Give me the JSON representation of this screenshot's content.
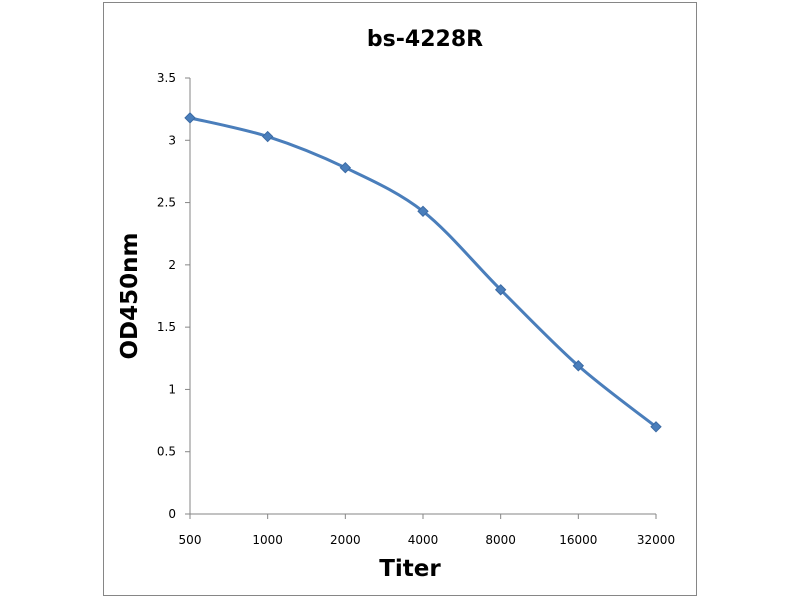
{
  "chart_data": {
    "type": "line",
    "title": "bs-4228R",
    "xlabel": "Titer",
    "ylabel": "OD450nm",
    "categories": [
      "500",
      "1000",
      "2000",
      "4000",
      "8000",
      "16000",
      "32000"
    ],
    "series": [
      {
        "values": [
          3.18,
          3.03,
          2.78,
          2.43,
          1.8,
          1.19,
          0.7
        ],
        "color": "#4a7ebb",
        "marker": "diamond",
        "smooth": true
      }
    ],
    "ylim": [
      0,
      3.5
    ],
    "yticks": [
      "0",
      "0.5",
      "1",
      "1.5",
      "2",
      "2.5",
      "3",
      "3.5"
    ],
    "grid": false,
    "legend": "none"
  }
}
